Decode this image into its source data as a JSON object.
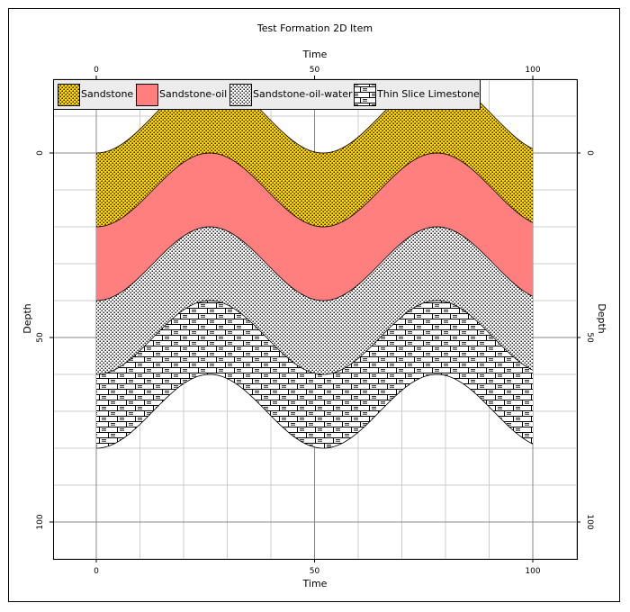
{
  "chart_data": {
    "type": "area",
    "title": "Test Formation 2D Item",
    "xlabel": "Time",
    "ylabel": "Depth",
    "xlim": [
      -10,
      110
    ],
    "ylim": [
      -20,
      110
    ],
    "y_inverted": true,
    "xticks": [
      0,
      50,
      100
    ],
    "yticks": [
      0,
      50,
      100
    ],
    "grid": true,
    "legend_placement": "top",
    "wave": {
      "period": 52,
      "phase_at_x0": "trough_of_offset",
      "amplitude": 10
    },
    "boundaries": [
      {
        "label": "top_sandstone",
        "offset": -10,
        "x_range": [
          0,
          100
        ]
      },
      {
        "label": "sandstone_oil",
        "offset": 10,
        "x_range": [
          0,
          100
        ]
      },
      {
        "label": "oil_oilwater",
        "offset": 30,
        "x_range": [
          0,
          100
        ]
      },
      {
        "label": "oilwater_limestone",
        "offset": 50,
        "x_range": [
          0,
          100
        ]
      },
      {
        "label": "limestone_base",
        "offset": 70,
        "x_range": [
          0,
          100
        ]
      }
    ],
    "series": [
      {
        "name": "Sandstone",
        "pattern": "dots",
        "color": "#FFD700"
      },
      {
        "name": "Sandstone-oil",
        "pattern": "solid",
        "color": "#FF7F7F"
      },
      {
        "name": "Sandstone-oil-water",
        "pattern": "dots",
        "color": "#FFFFFF"
      },
      {
        "name": "Thin Slice Limestone",
        "pattern": "brick",
        "color": "#FFFFFF"
      }
    ]
  }
}
